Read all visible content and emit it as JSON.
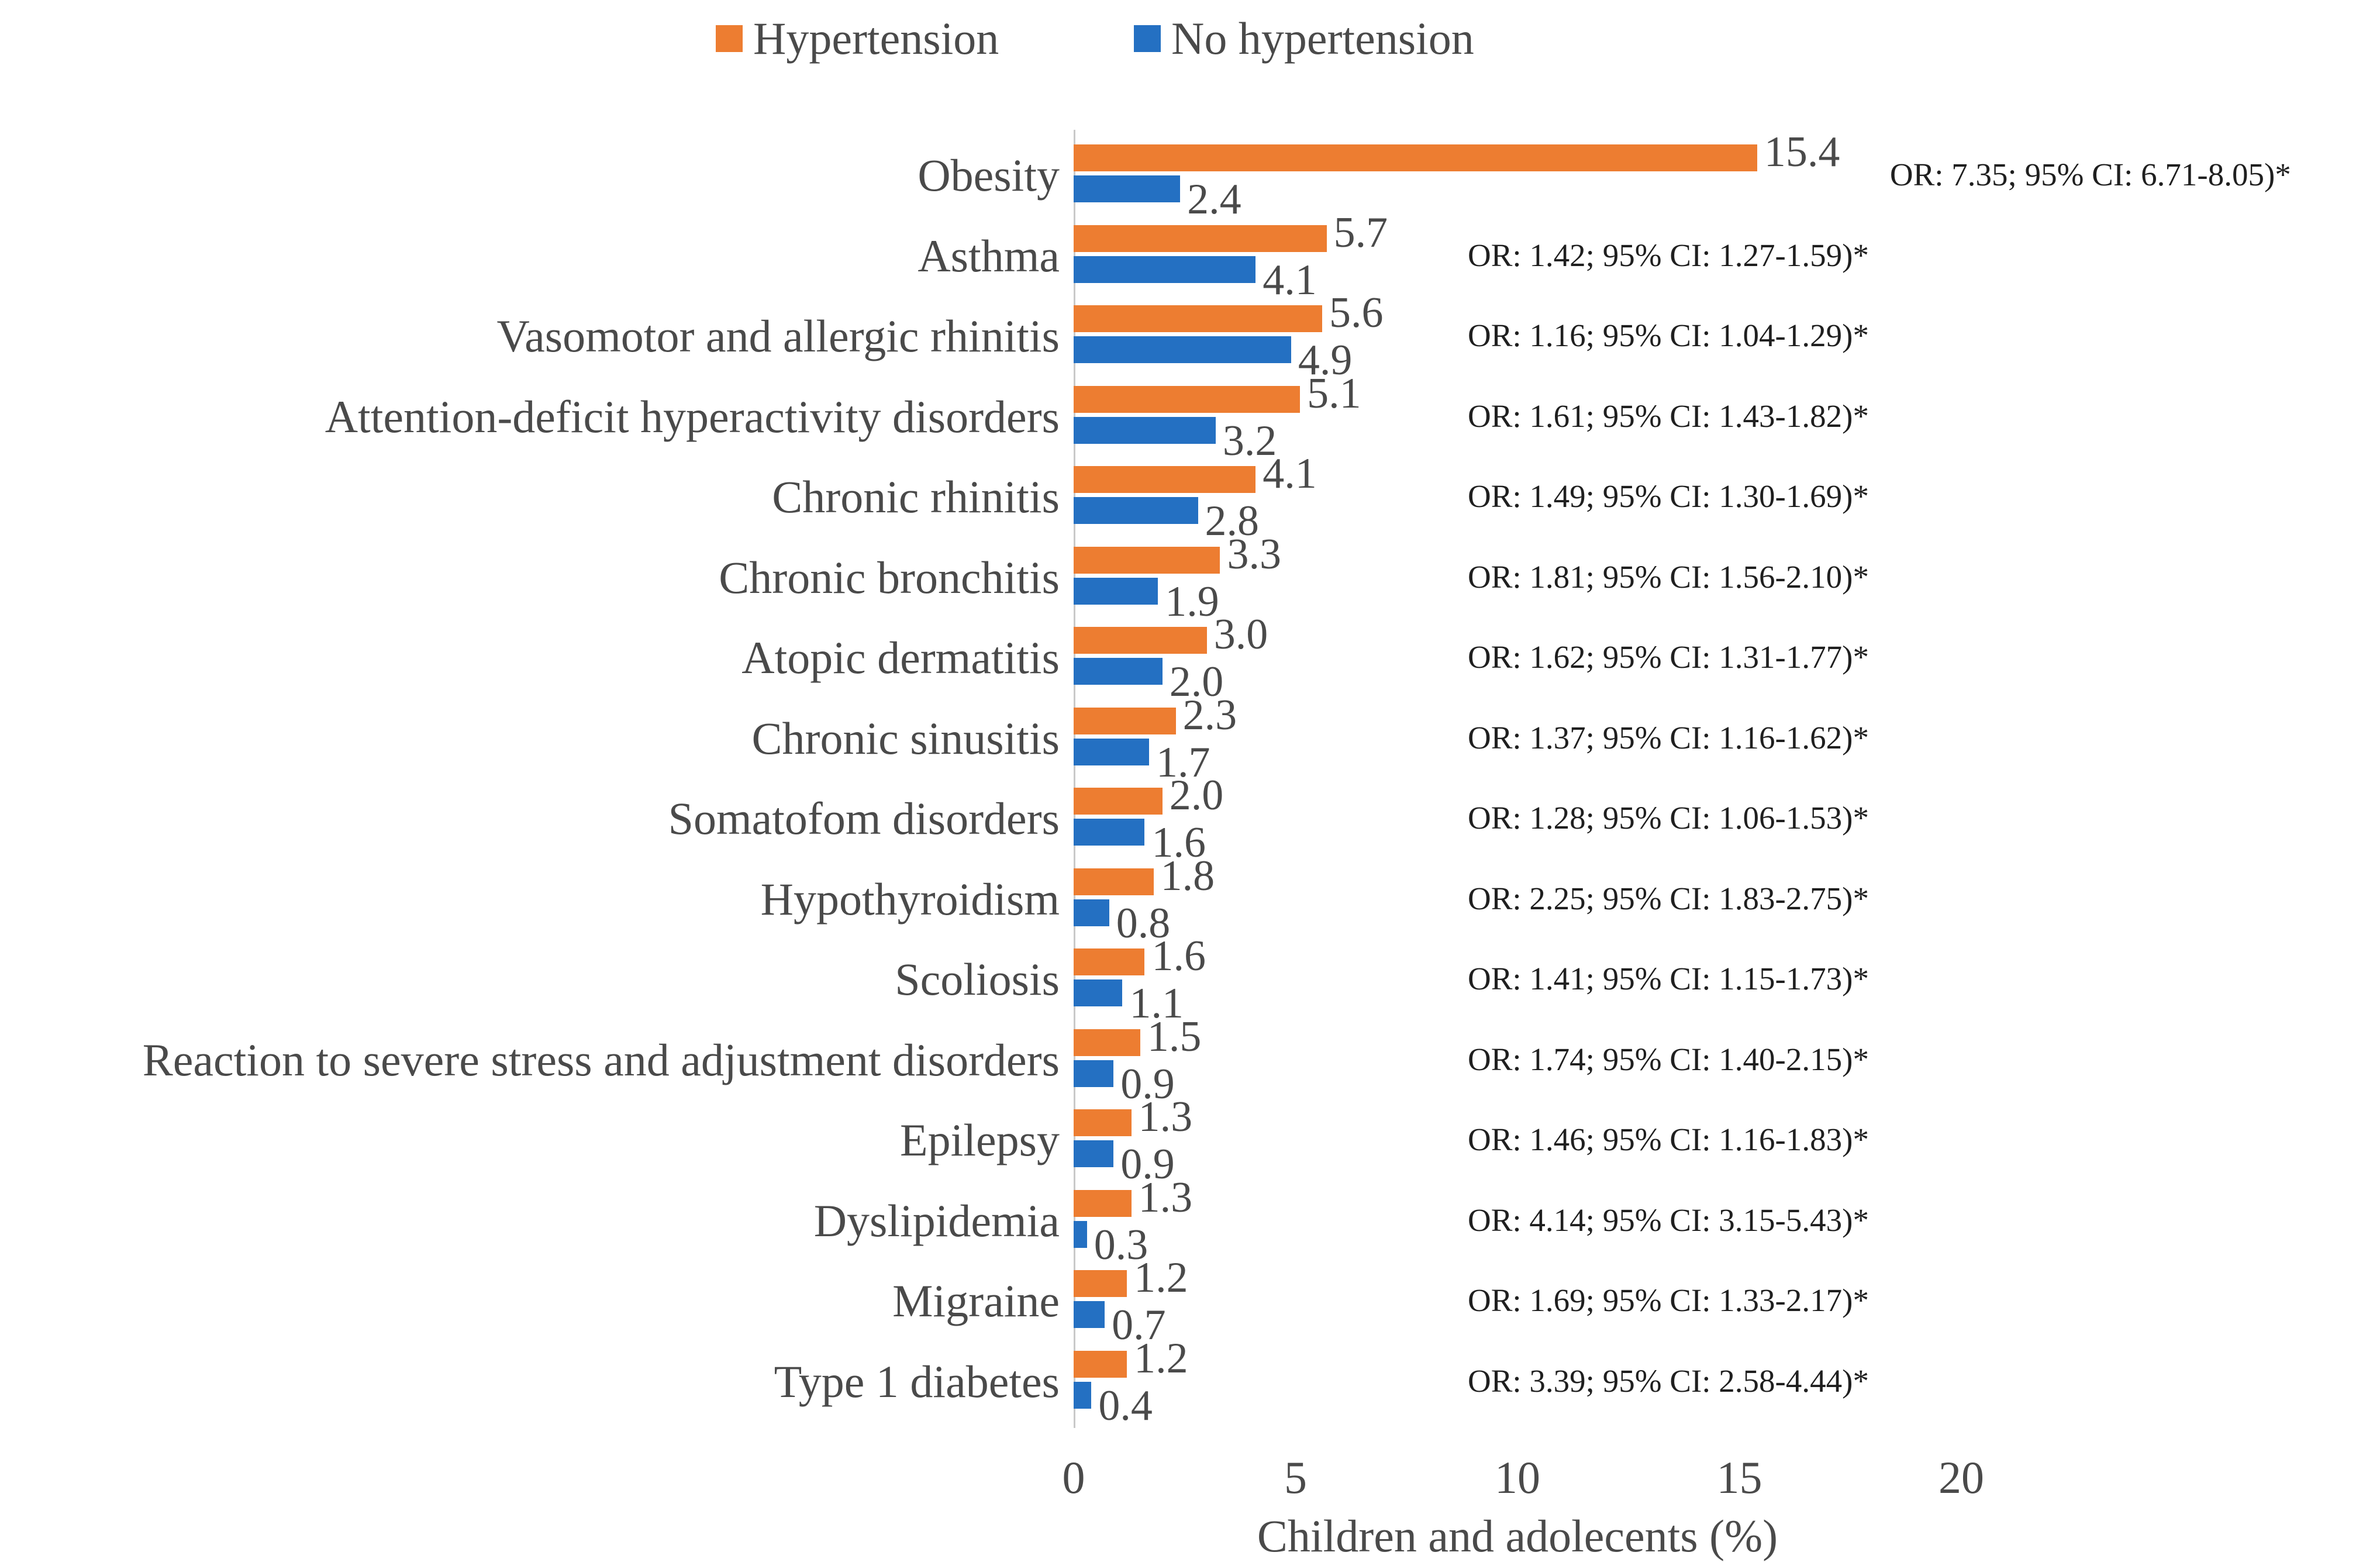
{
  "chart_data": {
    "type": "bar",
    "orientation": "horizontal",
    "title": "",
    "xlabel": "Children and adolecents (%)",
    "ylabel": "",
    "xlim": [
      0,
      20
    ],
    "xticks": [
      "0",
      "5",
      "10",
      "15",
      "20"
    ],
    "grid": false,
    "legend_position": "top-center",
    "legend": [
      "Hypertension",
      "No hypertension"
    ],
    "categories": [
      "Obesity",
      "Asthma",
      "Vasomotor and allergic rhinitis",
      "Attention-deficit hyperactivity disorders",
      "Chronic rhinitis",
      "Chronic bronchitis",
      "Atopic dermatitis",
      "Chronic sinusitis",
      "Somatofom disorders",
      "Hypothyroidism",
      "Scoliosis",
      "Reaction to severe stress and adjustment disorders",
      "Epilepsy",
      "Dyslipidemia",
      "Migraine",
      "Type 1 diabetes"
    ],
    "series": [
      {
        "name": "Hypertension",
        "color": "#ED7D31",
        "values": [
          15.4,
          5.7,
          5.6,
          5.1,
          4.1,
          3.3,
          3.0,
          2.3,
          2.0,
          1.8,
          1.6,
          1.5,
          1.3,
          1.3,
          1.2,
          1.2
        ],
        "labels": [
          "15.4",
          "5.7",
          "5.6",
          "5.1",
          "4.1",
          "3.3",
          "3.0",
          "2.3",
          "2.0",
          "1.8",
          "1.6",
          "1.5",
          "1.3",
          "1.3",
          "1.2",
          "1.2"
        ]
      },
      {
        "name": "No hypertension",
        "color": "#2470C2",
        "values": [
          2.4,
          4.1,
          4.9,
          3.2,
          2.8,
          1.9,
          2.0,
          1.7,
          1.6,
          0.8,
          1.1,
          0.9,
          0.9,
          0.3,
          0.7,
          0.4
        ],
        "labels": [
          "2.4",
          "4.1",
          "4.9",
          "3.2",
          "2.8",
          "1.9",
          "2.0",
          "1.7",
          "1.6",
          "0.8",
          "1.1",
          "0.9",
          "0.9",
          "0.3",
          "0.7",
          "0.4"
        ]
      }
    ],
    "annotations": [
      "OR: 7.35; 95% CI: 6.71-8.05)*",
      "OR: 1.42; 95% CI: 1.27-1.59)*",
      "OR: 1.16; 95% CI: 1.04-1.29)*",
      "OR: 1.61; 95% CI: 1.43-1.82)*",
      "OR: 1.49; 95% CI: 1.30-1.69)*",
      "OR: 1.81; 95% CI: 1.56-2.10)*",
      "OR: 1.62; 95% CI: 1.31-1.77)*",
      "OR: 1.37; 95% CI: 1.16-1.62)*",
      "OR: 1.28; 95% CI: 1.06-1.53)*",
      "OR: 2.25; 95% CI: 1.83-2.75)*",
      "OR: 1.41; 95% CI: 1.15-1.73)*",
      "OR: 1.74; 95% CI: 1.40-2.15)*",
      "OR: 1.46; 95% CI: 1.16-1.83)*",
      "OR: 4.14; 95% CI: 3.15-5.43)*",
      "OR: 1.69; 95% CI: 1.33-2.17)*",
      "OR: 3.39; 95% CI: 2.58-4.44)*"
    ]
  }
}
